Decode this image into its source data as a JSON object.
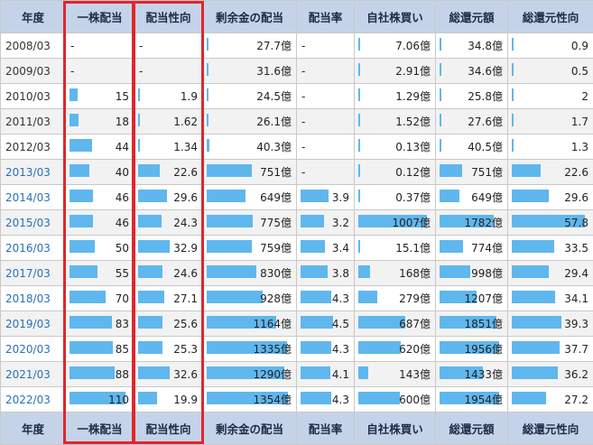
{
  "headers": [
    "年度",
    "一株配当",
    "配当性向",
    "剰余金の配当",
    "配当率",
    "自社株買い",
    "総還元額",
    "総還元性向"
  ],
  "rows": [
    {
      "year": "2008/03",
      "link": false,
      "cells": [
        "-",
        "-",
        "27.7億",
        "-",
        "7.06億",
        "34.8億",
        "0.9"
      ],
      "bars": [
        null,
        null,
        0.02,
        null,
        0,
        0.02,
        0.02
      ]
    },
    {
      "year": "2009/03",
      "link": false,
      "cells": [
        "-",
        "-",
        "31.6億",
        "-",
        "2.91億",
        "34.6億",
        "0.5"
      ],
      "bars": [
        null,
        null,
        0.02,
        null,
        0,
        0.02,
        0.01
      ]
    },
    {
      "year": "2010/03",
      "link": false,
      "cells": [
        "15",
        "1.9",
        "24.5億",
        "-",
        "1.29億",
        "25.8億",
        "2"
      ],
      "bars": [
        0.14,
        0.03,
        0.02,
        null,
        0,
        0.01,
        0.03
      ]
    },
    {
      "year": "2011/03",
      "link": false,
      "cells": [
        "18",
        "1.62",
        "26.1億",
        "-",
        "1.52億",
        "27.6億",
        "1.7"
      ],
      "bars": [
        0.16,
        0.03,
        0.02,
        null,
        0,
        0.01,
        0.03
      ]
    },
    {
      "year": "2012/03",
      "link": false,
      "cells": [
        "44",
        "1.34",
        "40.3億",
        "-",
        "0.13億",
        "40.5億",
        "1.3"
      ],
      "bars": [
        0.4,
        0.02,
        0.03,
        null,
        0,
        0.02,
        0.02
      ]
    },
    {
      "year": "2013/03",
      "link": true,
      "cells": [
        "40",
        "22.6",
        "751億",
        "-",
        "0.12億",
        "751億",
        "22.6"
      ],
      "bars": [
        0.36,
        0.39,
        0.55,
        null,
        0,
        0.38,
        0.39
      ]
    },
    {
      "year": "2014/03",
      "link": true,
      "cells": [
        "46",
        "29.6",
        "649億",
        "3.9",
        "0.37億",
        "649億",
        "29.6"
      ],
      "bars": [
        0.42,
        0.51,
        0.48,
        0.62,
        0,
        0.33,
        0.51
      ]
    },
    {
      "year": "2015/03",
      "link": true,
      "cells": [
        "46",
        "24.3",
        "775億",
        "3.2",
        "1007億",
        "1782億",
        "57.8"
      ],
      "bars": [
        0.42,
        0.42,
        0.57,
        0.51,
        1.0,
        0.91,
        1.0
      ]
    },
    {
      "year": "2016/03",
      "link": true,
      "cells": [
        "50",
        "32.9",
        "759億",
        "3.4",
        "15.1億",
        "774億",
        "33.5"
      ],
      "bars": [
        0.45,
        0.57,
        0.56,
        0.54,
        0.02,
        0.4,
        0.58
      ]
    },
    {
      "year": "2017/03",
      "link": true,
      "cells": [
        "55",
        "24.6",
        "830億",
        "3.8",
        "168億",
        "998億",
        "29.4"
      ],
      "bars": [
        0.5,
        0.43,
        0.61,
        0.6,
        0.17,
        0.51,
        0.51
      ]
    },
    {
      "year": "2018/03",
      "link": true,
      "cells": [
        "70",
        "27.1",
        "928億",
        "4.3",
        "279億",
        "1207億",
        "34.1"
      ],
      "bars": [
        0.64,
        0.47,
        0.69,
        0.68,
        0.28,
        0.62,
        0.59
      ]
    },
    {
      "year": "2019/03",
      "link": true,
      "cells": [
        "83",
        "25.6",
        "1164億",
        "4.5",
        "687億",
        "1851億",
        "39.3"
      ],
      "bars": [
        0.75,
        0.44,
        0.86,
        0.71,
        0.68,
        0.95,
        0.68
      ]
    },
    {
      "year": "2020/03",
      "link": true,
      "cells": [
        "85",
        "25.3",
        "1335億",
        "4.3",
        "620億",
        "1956億",
        "37.7"
      ],
      "bars": [
        0.77,
        0.44,
        0.99,
        0.68,
        0.62,
        1.0,
        0.65
      ]
    },
    {
      "year": "2021/03",
      "link": true,
      "cells": [
        "88",
        "32.6",
        "1290億",
        "4.1",
        "143億",
        "1433億",
        "36.2"
      ],
      "bars": [
        0.8,
        0.56,
        0.95,
        0.65,
        0.14,
        0.73,
        0.63
      ]
    },
    {
      "year": "2022/03",
      "link": true,
      "cells": [
        "110",
        "19.9",
        "1354億",
        "4.3",
        "600億",
        "1954億",
        "27.2"
      ],
      "bars": [
        1.0,
        0.34,
        1.0,
        0.68,
        0.6,
        1.0,
        0.47
      ]
    }
  ],
  "colors": {
    "bar": "#5fb7ee",
    "highlight": "#e0262b",
    "header": "#c5d3e8"
  }
}
